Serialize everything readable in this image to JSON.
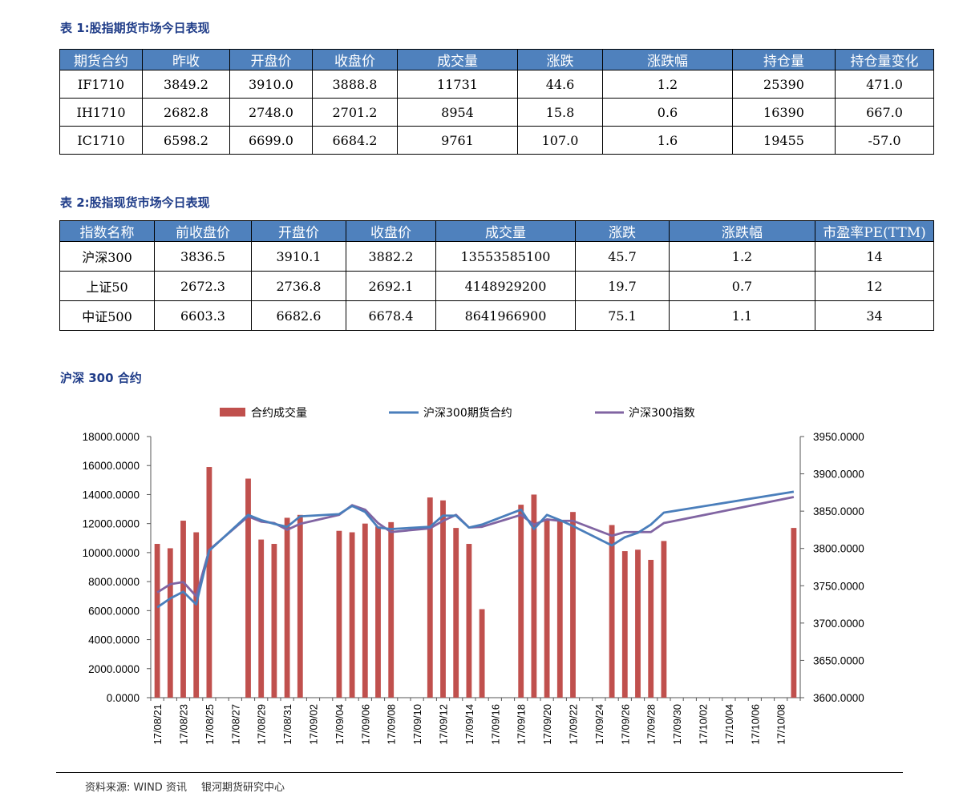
{
  "table1": {
    "title": "表 1:股指期货市场今日表现",
    "headers": [
      "期货合约",
      "昨收",
      "开盘价",
      "收盘价",
      "成交量",
      "涨跌",
      "涨跌幅",
      "持仓量",
      "持仓量变化"
    ],
    "rows": [
      [
        "IF1710",
        "3849.2",
        "3910.0",
        "3888.8",
        "11731",
        "44.6",
        "1.2",
        "25390",
        "471.0"
      ],
      [
        "IH1710",
        "2682.8",
        "2748.0",
        "2701.2",
        "8954",
        "15.8",
        "0.6",
        "16390",
        "667.0"
      ],
      [
        "IC1710",
        "6598.2",
        "6699.0",
        "6684.2",
        "9761",
        "107.0",
        "1.6",
        "19455",
        "-57.0"
      ]
    ]
  },
  "table2": {
    "title": "表 2:股指现货市场今日表现",
    "headers": [
      "指数名称",
      "前收盘价",
      "开盘价",
      "收盘价",
      "成交量",
      "涨跌",
      "涨跌幅",
      "市盈率PE(TTM)"
    ],
    "rows": [
      [
        "沪深300",
        "3836.5",
        "3910.1",
        "3882.2",
        "13553585100",
        "45.7",
        "1.2",
        "14"
      ],
      [
        "上证50",
        "2672.3",
        "2736.8",
        "2692.1",
        "4148929200",
        "19.7",
        "0.7",
        "12"
      ],
      [
        "中证500",
        "6603.3",
        "6682.6",
        "6678.4",
        "8641966900",
        "75.1",
        "1.1",
        "34"
      ]
    ]
  },
  "chart_title": "沪深 300 合约",
  "source": {
    "label": "资料来源:",
    "wind": "WIND 资讯",
    "org": "银河期货研究中心"
  },
  "chart_data": {
    "type": "bar+line",
    "legend": [
      "合约成交量",
      "沪深300期货合约",
      "沪深300指数"
    ],
    "colors": {
      "bar": "#c0504d",
      "futures": "#4a7ebb",
      "index": "#8064a2"
    },
    "x_labels": [
      "17/08/21",
      "17/08/23",
      "17/08/25",
      "17/08/27",
      "17/08/29",
      "17/08/31",
      "17/09/02",
      "17/09/04",
      "17/09/06",
      "17/09/08",
      "17/09/10",
      "17/09/12",
      "17/09/14",
      "17/09/16",
      "17/09/18",
      "17/09/20",
      "17/09/22",
      "17/09/24",
      "17/09/26",
      "17/09/28",
      "17/09/30",
      "17/10/02",
      "17/10/04",
      "17/10/06",
      "17/10/08"
    ],
    "y_left": {
      "min": 0,
      "max": 18000,
      "step": 2000,
      "ticks": [
        "0.0000",
        "2000.0000",
        "4000.0000",
        "6000.0000",
        "8000.0000",
        "10000.0000",
        "12000.0000",
        "14000.0000",
        "16000.0000",
        "18000.0000"
      ]
    },
    "y_right": {
      "min": 3600,
      "max": 3950,
      "step": 50,
      "ticks": [
        "3600.0000",
        "3650.0000",
        "3700.0000",
        "3750.0000",
        "3800.0000",
        "3850.0000",
        "3900.0000",
        "3950.0000"
      ]
    },
    "day_count": 49,
    "volume": [
      [
        0,
        10600
      ],
      [
        1,
        10300
      ],
      [
        2,
        12200
      ],
      [
        3,
        11400
      ],
      [
        4,
        15900
      ],
      [
        7,
        15100
      ],
      [
        8,
        10900
      ],
      [
        9,
        10600
      ],
      [
        10,
        12400
      ],
      [
        11,
        12600
      ],
      [
        14,
        11500
      ],
      [
        15,
        11400
      ],
      [
        16,
        12000
      ],
      [
        17,
        11800
      ],
      [
        18,
        12100
      ],
      [
        21,
        13800
      ],
      [
        22,
        13600
      ],
      [
        23,
        11700
      ],
      [
        24,
        10600
      ],
      [
        25,
        6100
      ],
      [
        28,
        13300
      ],
      [
        29,
        14000
      ],
      [
        30,
        12300
      ],
      [
        31,
        12200
      ],
      [
        32,
        12800
      ],
      [
        35,
        11900
      ],
      [
        36,
        10100
      ],
      [
        37,
        10200
      ],
      [
        38,
        9500
      ],
      [
        39,
        10800
      ],
      [
        49,
        11700
      ]
    ],
    "futures": [
      [
        0,
        3721
      ],
      [
        1,
        3733
      ],
      [
        2,
        3742
      ],
      [
        3,
        3725
      ],
      [
        4,
        3797
      ],
      [
        7,
        3845
      ],
      [
        8,
        3838
      ],
      [
        9,
        3833
      ],
      [
        10,
        3829
      ],
      [
        11,
        3843
      ],
      [
        14,
        3846
      ],
      [
        15,
        3857
      ],
      [
        16,
        3849
      ],
      [
        17,
        3828
      ],
      [
        18,
        3826
      ],
      [
        21,
        3829
      ],
      [
        22,
        3844
      ],
      [
        23,
        3844
      ],
      [
        24,
        3828
      ],
      [
        25,
        3832
      ],
      [
        28,
        3852
      ],
      [
        29,
        3826
      ],
      [
        30,
        3845
      ],
      [
        31,
        3838
      ],
      [
        32,
        3830
      ],
      [
        35,
        3804
      ],
      [
        36,
        3815
      ],
      [
        37,
        3821
      ],
      [
        38,
        3832
      ],
      [
        39,
        3848
      ],
      [
        49,
        3876
      ]
    ],
    "index": [
      [
        0,
        3741
      ],
      [
        1,
        3752
      ],
      [
        2,
        3755
      ],
      [
        3,
        3736
      ],
      [
        4,
        3798
      ],
      [
        7,
        3843
      ],
      [
        8,
        3836
      ],
      [
        9,
        3834
      ],
      [
        10,
        3825
      ],
      [
        11,
        3833
      ],
      [
        14,
        3845
      ],
      [
        15,
        3858
      ],
      [
        16,
        3852
      ],
      [
        17,
        3834
      ],
      [
        18,
        3822
      ],
      [
        21,
        3827
      ],
      [
        22,
        3837
      ],
      [
        23,
        3845
      ],
      [
        24,
        3828
      ],
      [
        25,
        3829
      ],
      [
        28,
        3845
      ],
      [
        29,
        3832
      ],
      [
        30,
        3839
      ],
      [
        31,
        3837
      ],
      [
        32,
        3837
      ],
      [
        35,
        3817
      ],
      [
        36,
        3822
      ],
      [
        37,
        3822
      ],
      [
        38,
        3822
      ],
      [
        39,
        3834
      ],
      [
        49,
        3869
      ]
    ]
  }
}
